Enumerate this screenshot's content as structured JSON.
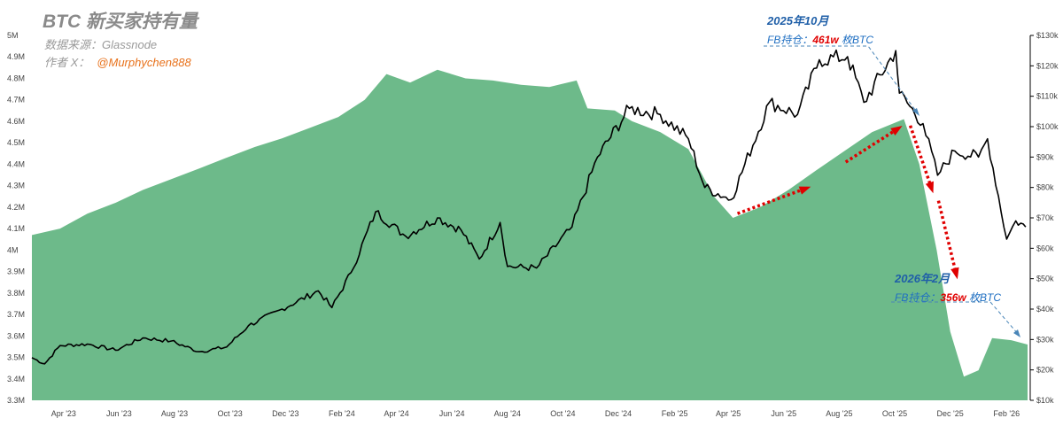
{
  "header": {
    "title": "BTC 新买家持有量",
    "source": "数据来源：Glassnode",
    "author_prefix": "作者 X：",
    "author_handle": "@Murphychen888"
  },
  "annotations": [
    {
      "date": "2025年10月",
      "prefix": "FB持仓：",
      "value": "461w",
      "suffix": " 枚BTC"
    },
    {
      "date": "2026年2月",
      "prefix": "FB持仓：",
      "value": "356w",
      "suffix": " 枚BTC"
    }
  ],
  "colors": {
    "area": "#6dba8a",
    "price": "#000000",
    "arrow": "#e00000",
    "leader": "#4a86b8"
  },
  "chart_data": {
    "type": "area+line",
    "x_ticks": [
      "Apr '23",
      "Jun '23",
      "Aug '23",
      "Oct '23",
      "Dec '23",
      "Feb '24",
      "Apr '24",
      "Jun '24",
      "Aug '24",
      "Oct '24",
      "Dec '24",
      "Feb '25",
      "Apr '25",
      "Jun '25",
      "Aug '25",
      "Oct '25",
      "Dec '25",
      "Feb '26"
    ],
    "left_axis": {
      "ticks": [
        "3.3M",
        "3.4M",
        "3.5M",
        "3.6M",
        "3.7M",
        "3.8M",
        "3.9M",
        "4M",
        "4.1M",
        "4.2M",
        "4.3M",
        "4.4M",
        "4.5M",
        "4.6M",
        "4.7M",
        "4.8M",
        "4.9M",
        "5M"
      ],
      "range": [
        3.3,
        5.0
      ]
    },
    "right_axis": {
      "ticks": [
        "$10k",
        "$20k",
        "$30k",
        "$40k",
        "$50k",
        "$60k",
        "$70k",
        "$80k",
        "$90k",
        "$100k",
        "$110k",
        "$120k",
        "$130k"
      ],
      "range": [
        10000,
        130000
      ]
    },
    "x_range": [
      "2023-03-01",
      "2026-02-28"
    ],
    "series": [
      {
        "kind": "area",
        "axis": "left",
        "points": [
          [
            "2023-03-01",
            4.07
          ],
          [
            "2023-04-01",
            4.1
          ],
          [
            "2023-05-01",
            4.17
          ],
          [
            "2023-06-01",
            4.22
          ],
          [
            "2023-07-01",
            4.28
          ],
          [
            "2023-08-01",
            4.33
          ],
          [
            "2023-09-01",
            4.38
          ],
          [
            "2023-10-01",
            4.43
          ],
          [
            "2023-11-01",
            4.48
          ],
          [
            "2023-12-01",
            4.52
          ],
          [
            "2024-01-01",
            4.57
          ],
          [
            "2024-02-01",
            4.62
          ],
          [
            "2024-03-01",
            4.7
          ],
          [
            "2024-03-25",
            4.82
          ],
          [
            "2024-04-20",
            4.78
          ],
          [
            "2024-05-20",
            4.84
          ],
          [
            "2024-06-20",
            4.8
          ],
          [
            "2024-07-20",
            4.79
          ],
          [
            "2024-08-20",
            4.77
          ],
          [
            "2024-09-20",
            4.76
          ],
          [
            "2024-10-20",
            4.79
          ],
          [
            "2024-11-01",
            4.66
          ],
          [
            "2024-12-01",
            4.65
          ],
          [
            "2024-12-20",
            4.6
          ],
          [
            "2025-01-20",
            4.55
          ],
          [
            "2025-02-20",
            4.47
          ],
          [
            "2025-03-20",
            4.25
          ],
          [
            "2025-04-10",
            4.15
          ],
          [
            "2025-05-10",
            4.2
          ],
          [
            "2025-06-10",
            4.28
          ],
          [
            "2025-07-10",
            4.37
          ],
          [
            "2025-08-10",
            4.46
          ],
          [
            "2025-09-10",
            4.55
          ],
          [
            "2025-10-15",
            4.61
          ],
          [
            "2025-11-01",
            4.4
          ],
          [
            "2025-11-20",
            4.0
          ],
          [
            "2025-12-05",
            3.62
          ],
          [
            "2025-12-20",
            3.41
          ],
          [
            "2026-01-05",
            3.44
          ],
          [
            "2026-01-20",
            3.59
          ],
          [
            "2026-02-10",
            3.58
          ],
          [
            "2026-02-28",
            3.56
          ]
        ]
      },
      {
        "kind": "line",
        "axis": "right",
        "points": [
          [
            "2023-03-01",
            24000
          ],
          [
            "2023-03-15",
            22000
          ],
          [
            "2023-04-01",
            28000
          ],
          [
            "2023-05-01",
            28500
          ],
          [
            "2023-06-01",
            26500
          ],
          [
            "2023-07-01",
            30500
          ],
          [
            "2023-08-01",
            29500
          ],
          [
            "2023-09-01",
            26000
          ],
          [
            "2023-10-01",
            27500
          ],
          [
            "2023-10-25",
            34500
          ],
          [
            "2023-12-01",
            40000
          ],
          [
            "2024-01-10",
            46000
          ],
          [
            "2024-01-25",
            40500
          ],
          [
            "2024-02-15",
            52000
          ],
          [
            "2024-03-13",
            72000
          ],
          [
            "2024-04-15",
            64000
          ],
          [
            "2024-05-20",
            70000
          ],
          [
            "2024-06-15",
            66000
          ],
          [
            "2024-07-05",
            56500
          ],
          [
            "2024-07-28",
            68500
          ],
          [
            "2024-08-05",
            54000
          ],
          [
            "2024-09-06",
            53500
          ],
          [
            "2024-10-15",
            67000
          ],
          [
            "2024-11-12",
            90000
          ],
          [
            "2024-12-17",
            106000
          ],
          [
            "2025-01-20",
            104000
          ],
          [
            "2025-02-20",
            96000
          ],
          [
            "2025-03-10",
            80000
          ],
          [
            "2025-04-08",
            76000
          ],
          [
            "2025-05-20",
            108000
          ],
          [
            "2025-06-20",
            104000
          ],
          [
            "2025-07-14",
            122000
          ],
          [
            "2025-08-14",
            123000
          ],
          [
            "2025-09-01",
            108000
          ],
          [
            "2025-10-06",
            125000
          ],
          [
            "2025-10-10",
            111000
          ],
          [
            "2025-11-05",
            101000
          ],
          [
            "2025-11-21",
            84000
          ],
          [
            "2025-12-10",
            92000
          ],
          [
            "2026-01-05",
            90000
          ],
          [
            "2026-01-15",
            96000
          ],
          [
            "2026-02-05",
            63000
          ],
          [
            "2026-02-15",
            69000
          ],
          [
            "2026-02-26",
            67000
          ]
        ]
      }
    ]
  }
}
